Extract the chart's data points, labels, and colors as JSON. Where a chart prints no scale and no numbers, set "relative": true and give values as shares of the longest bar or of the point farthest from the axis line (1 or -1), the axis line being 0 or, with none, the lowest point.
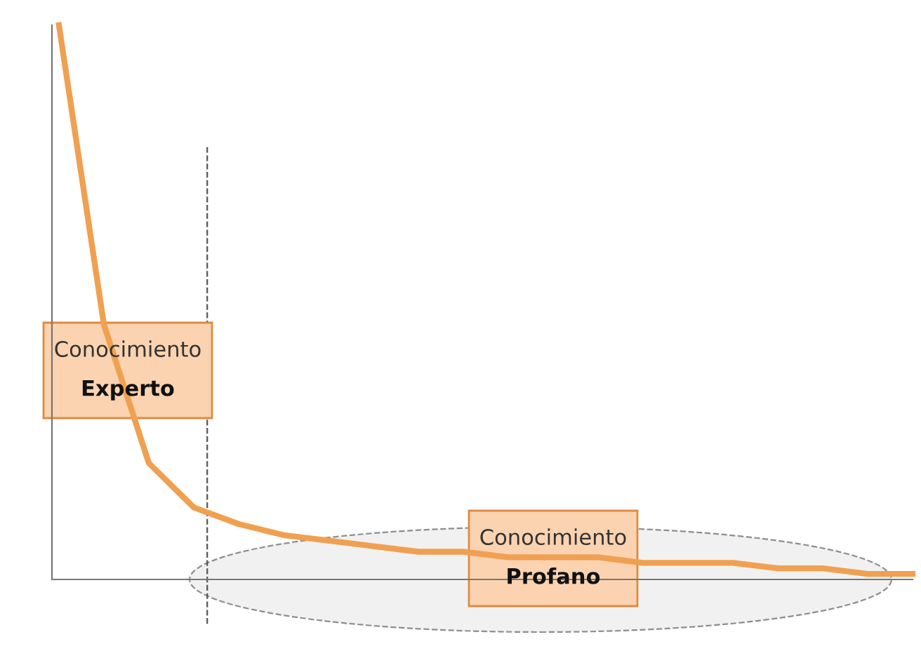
{
  "chart_data": {
    "type": "line",
    "relative": true,
    "categories": [
      null,
      null,
      null,
      null,
      null,
      null,
      null,
      null,
      null,
      null,
      null,
      null,
      null,
      null,
      null,
      null,
      null,
      null,
      null,
      null
    ],
    "series": [
      {
        "color": "#f0a050",
        "values": [
          1.0,
          0.46,
          0.21,
          0.13,
          0.1,
          0.08,
          0.07,
          0.06,
          0.05,
          0.05,
          0.04,
          0.04,
          0.04,
          0.03,
          0.03,
          0.03,
          0.02,
          0.02,
          0.01,
          0.01
        ]
      }
    ],
    "annotations": [
      "Conocimiento Experto",
      "Conocimiento Profano"
    ],
    "legend": false,
    "marker": "none",
    "line_style": "solid"
  }
}
